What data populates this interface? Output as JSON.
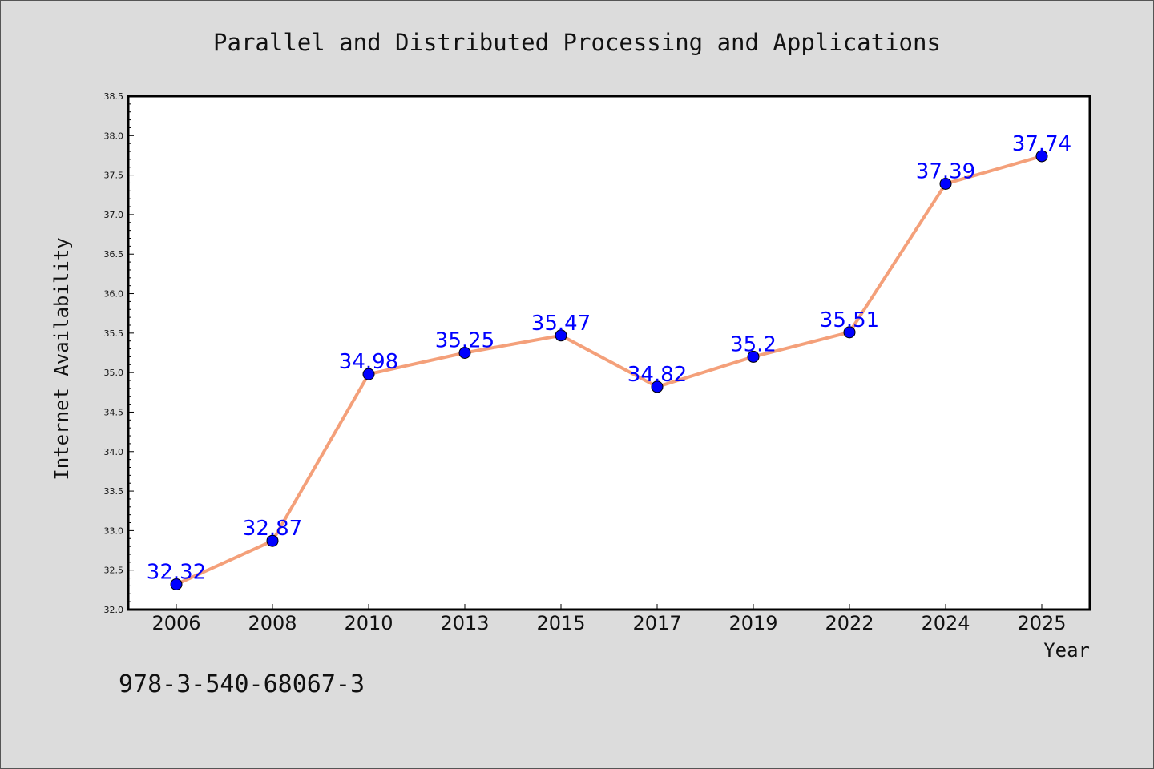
{
  "chart_data": {
    "type": "line",
    "title": "Parallel and Distributed Processing and Applications",
    "xlabel": "Year",
    "ylabel": "Internet Availability",
    "categories": [
      "2006",
      "2008",
      "2010",
      "2013",
      "2015",
      "2017",
      "2019",
      "2022",
      "2024",
      "2025"
    ],
    "series": [
      {
        "values": [
          32.32,
          32.87,
          34.98,
          35.25,
          35.47,
          34.82,
          35.2,
          35.51,
          37.39,
          37.74
        ],
        "labels": [
          "32.32",
          "32.87",
          "34.98",
          "35.25",
          "35.47",
          "34.82",
          "35.2",
          "35.51",
          "37.39",
          "37.74"
        ]
      }
    ],
    "ylim": [
      32.0,
      38.5
    ],
    "yticks": [
      "32.0",
      "32.5",
      "33.0",
      "33.5",
      "34.0",
      "34.5",
      "35.0",
      "35.5",
      "36.0",
      "36.5",
      "37.0",
      "37.5",
      "38.0",
      "38.5"
    ],
    "grid": false,
    "colors": {
      "line": "#f4a07a",
      "marker": "#0000ff",
      "marker_edge": "#000000",
      "data_label": "#0000ff",
      "plot_bg": "#ffffff",
      "page_bg": "#dcdcdc"
    }
  },
  "footer": {
    "isbn": "978-3-540-68067-3"
  }
}
